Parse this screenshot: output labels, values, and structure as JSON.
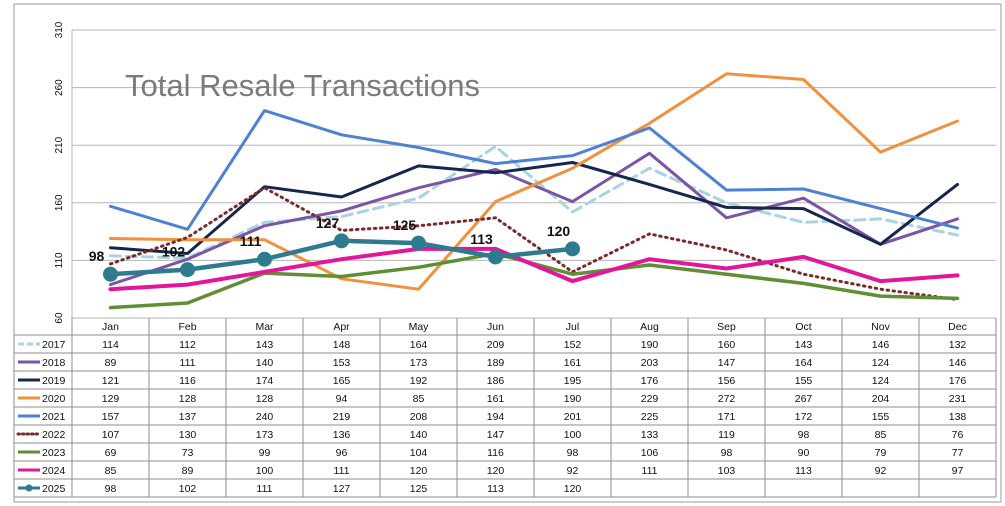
{
  "chart_data": {
    "type": "line",
    "title": "Total Resale Transactions",
    "categories": [
      "Jan",
      "Feb",
      "Mar",
      "Apr",
      "May",
      "Jun",
      "Jul",
      "Aug",
      "Sep",
      "Oct",
      "Nov",
      "Dec"
    ],
    "yticks": [
      "60",
      "110",
      "160",
      "210",
      "260",
      "310"
    ],
    "ylim": [
      60,
      310
    ],
    "grid": true,
    "legend": "data-table",
    "series": [
      {
        "name": "2017",
        "color": "#a9d3e0",
        "style": "dashed",
        "values": [
          114,
          112,
          143,
          148,
          164,
          209,
          152,
          190,
          160,
          143,
          146,
          132
        ]
      },
      {
        "name": "2018",
        "color": "#7a55a6",
        "style": "solid",
        "values": [
          89,
          111,
          140,
          153,
          173,
          189,
          161,
          203,
          147,
          164,
          124,
          146
        ]
      },
      {
        "name": "2019",
        "color": "#16264c",
        "style": "solid",
        "values": [
          121,
          116,
          174,
          165,
          192,
          186,
          195,
          176,
          156,
          155,
          124,
          176
        ]
      },
      {
        "name": "2020",
        "color": "#f0913f",
        "style": "solid",
        "values": [
          129,
          128,
          128,
          94,
          85,
          161,
          190,
          229,
          272,
          267,
          204,
          231
        ]
      },
      {
        "name": "2021",
        "color": "#4f81d3",
        "style": "solid",
        "values": [
          157,
          137,
          240,
          219,
          208,
          194,
          201,
          225,
          171,
          172,
          155,
          138
        ]
      },
      {
        "name": "2022",
        "color": "#7a2a2a",
        "style": "dotted",
        "values": [
          107,
          130,
          173,
          136,
          140,
          147,
          100,
          133,
          119,
          98,
          85,
          76
        ]
      },
      {
        "name": "2023",
        "color": "#5f8e35",
        "style": "solid",
        "values": [
          69,
          73,
          99,
          96,
          104,
          116,
          98,
          106,
          98,
          90,
          79,
          77
        ]
      },
      {
        "name": "2024",
        "color": "#e3169a",
        "style": "solid",
        "values": [
          85,
          89,
          100,
          111,
          120,
          120,
          92,
          111,
          103,
          113,
          92,
          97
        ]
      },
      {
        "name": "2025",
        "color": "#2e7a8e",
        "style": "marker",
        "values": [
          98,
          102,
          111,
          127,
          125,
          113,
          120,
          null,
          null,
          null,
          null,
          null
        ]
      }
    ]
  }
}
